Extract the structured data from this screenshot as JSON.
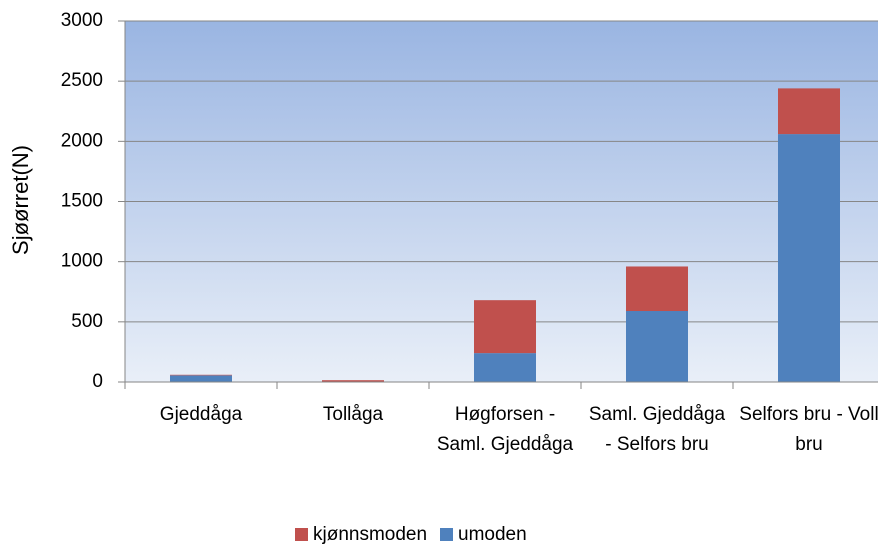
{
  "chart_data": {
    "type": "stacked_bar",
    "y_label": "Sjøørret(N)",
    "categories": [
      "Gjeddåga",
      "Tollåga",
      "Høgforsen - Saml. Gjeddåga",
      "Saml. Gjeddåga - Selfors bru",
      "Selfors bru - Voll bru"
    ],
    "series": [
      {
        "name": "umoden",
        "color": "#4f81bd",
        "values": [
          55,
          0,
          240,
          590,
          2060
        ]
      },
      {
        "name": "kjønnsmoden",
        "color": "#c0504d",
        "values": [
          5,
          15,
          440,
          370,
          380
        ]
      }
    ],
    "ylim": [
      0,
      3000
    ],
    "yticks": [
      0,
      500,
      1000,
      1500,
      2000,
      2500,
      3000
    ],
    "grid": true,
    "legend": "bottom"
  }
}
